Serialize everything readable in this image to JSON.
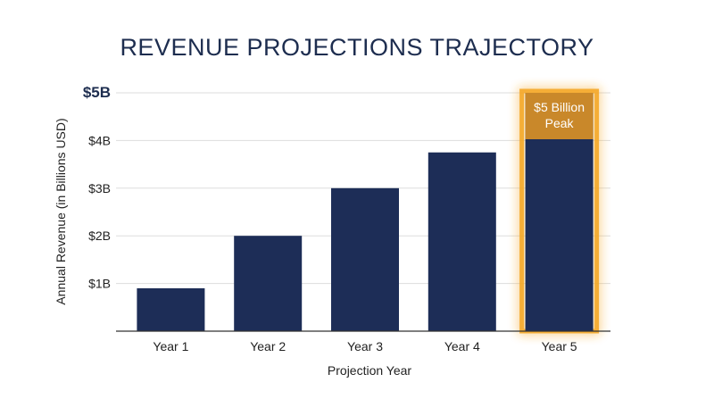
{
  "chart_data": {
    "type": "bar",
    "title": "REVENUE PROJECTIONS TRAJECTORY",
    "xlabel": "Projection Year",
    "ylabel": "Annual Revenue (in Billions USD)",
    "categories": [
      "Year 1",
      "Year 2",
      "Year 3",
      "Year 4",
      "Year 5"
    ],
    "values": [
      0.9,
      2.0,
      3.0,
      3.75,
      5.0
    ],
    "ylim": [
      0,
      5
    ],
    "yticks": [
      {
        "value": 1,
        "label": "$1B"
      },
      {
        "value": 2,
        "label": "$2B"
      },
      {
        "value": 3,
        "label": "$3B"
      },
      {
        "value": 4,
        "label": "$4B"
      },
      {
        "value": 5,
        "label": "$5B"
      }
    ],
    "grid": true,
    "legend": "none",
    "highlight": {
      "category": "Year 5",
      "annotation_line1": "$5 Billion",
      "annotation_line2": "Peak"
    },
    "colors": {
      "bar": "#1d2d57",
      "title": "#1d2d4f",
      "highlight_glow": "#f5a623",
      "highlight_label_bg": "#c9882a",
      "grid": "#dddddd",
      "axis": "#333333"
    }
  }
}
